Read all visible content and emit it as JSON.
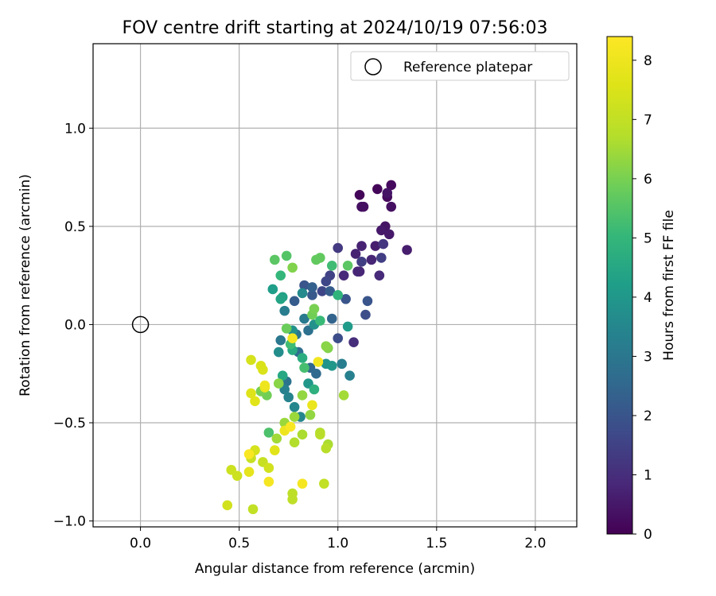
{
  "chart_data": {
    "type": "scatter",
    "title": "FOV centre drift starting at 2024/10/19 07:56:03",
    "xlabel": "Angular distance from reference (arcmin)",
    "ylabel": "Rotation from reference (arcmin)",
    "xlim": [
      -0.24,
      2.21
    ],
    "ylim": [
      -1.03,
      1.43
    ],
    "xticks": [
      0.0,
      0.5,
      1.0,
      1.5,
      2.0
    ],
    "xtick_labels": [
      "0.0",
      "0.5",
      "1.0",
      "1.5",
      "2.0"
    ],
    "yticks": [
      -1.0,
      -0.5,
      0.0,
      0.5,
      1.0
    ],
    "ytick_labels": [
      "−1.0",
      "−0.5",
      "0.0",
      "0.5",
      "1.0"
    ],
    "grid": true,
    "legend": {
      "position": "top-right",
      "entries": [
        "Reference platepar"
      ]
    },
    "reference_point": {
      "x": 0.0,
      "y": 0.0,
      "label": "Reference platepar"
    },
    "colorbar": {
      "label": "Hours from first FF file",
      "colormap": "viridis",
      "range": [
        0,
        8.4
      ],
      "ticks": [
        0,
        1,
        2,
        3,
        4,
        5,
        6,
        7,
        8
      ],
      "tick_labels": [
        "0",
        "1",
        "2",
        "3",
        "4",
        "5",
        "6",
        "7",
        "8"
      ]
    },
    "points": [
      {
        "x": 1.11,
        "y": 0.66,
        "h": 0.1
      },
      {
        "x": 1.2,
        "y": 0.69,
        "h": 0.1
      },
      {
        "x": 1.27,
        "y": 0.71,
        "h": 0.2
      },
      {
        "x": 1.25,
        "y": 0.65,
        "h": 0.2
      },
      {
        "x": 1.27,
        "y": 0.6,
        "h": 0.3
      },
      {
        "x": 1.12,
        "y": 0.6,
        "h": 0.3
      },
      {
        "x": 1.13,
        "y": 0.6,
        "h": 0.3
      },
      {
        "x": 1.25,
        "y": 0.67,
        "h": 0.4
      },
      {
        "x": 1.24,
        "y": 0.5,
        "h": 0.4
      },
      {
        "x": 1.22,
        "y": 0.48,
        "h": 0.5
      },
      {
        "x": 1.26,
        "y": 0.46,
        "h": 0.5
      },
      {
        "x": 1.35,
        "y": 0.38,
        "h": 0.6
      },
      {
        "x": 1.19,
        "y": 0.4,
        "h": 0.6
      },
      {
        "x": 1.12,
        "y": 0.4,
        "h": 0.7
      },
      {
        "x": 1.09,
        "y": 0.36,
        "h": 0.7
      },
      {
        "x": 1.17,
        "y": 0.33,
        "h": 0.8
      },
      {
        "x": 1.1,
        "y": 0.27,
        "h": 0.8
      },
      {
        "x": 1.11,
        "y": 0.27,
        "h": 0.8
      },
      {
        "x": 1.03,
        "y": 0.25,
        "h": 0.9
      },
      {
        "x": 1.21,
        "y": 0.25,
        "h": 0.9
      },
      {
        "x": 1.08,
        "y": -0.09,
        "h": 1.0
      },
      {
        "x": 1.23,
        "y": 0.41,
        "h": 1.2
      },
      {
        "x": 1.0,
        "y": 0.39,
        "h": 1.3
      },
      {
        "x": 1.22,
        "y": 0.34,
        "h": 1.4
      },
      {
        "x": 1.12,
        "y": 0.32,
        "h": 1.4
      },
      {
        "x": 0.96,
        "y": 0.25,
        "h": 1.5
      },
      {
        "x": 0.94,
        "y": 0.22,
        "h": 1.6
      },
      {
        "x": 0.92,
        "y": 0.17,
        "h": 1.6
      },
      {
        "x": 1.0,
        "y": -0.07,
        "h": 1.8
      },
      {
        "x": 1.14,
        "y": 0.05,
        "h": 1.8
      },
      {
        "x": 1.15,
        "y": 0.12,
        "h": 2.0
      },
      {
        "x": 1.04,
        "y": 0.13,
        "h": 2.0
      },
      {
        "x": 0.83,
        "y": 0.2,
        "h": 2.0
      },
      {
        "x": 0.87,
        "y": 0.15,
        "h": 2.1
      },
      {
        "x": 0.78,
        "y": 0.12,
        "h": 2.2
      },
      {
        "x": 0.96,
        "y": 0.17,
        "h": 2.2
      },
      {
        "x": 0.87,
        "y": 0.19,
        "h": 2.3
      },
      {
        "x": 0.97,
        "y": 0.03,
        "h": 2.4
      },
      {
        "x": 0.86,
        "y": -0.22,
        "h": 2.5
      },
      {
        "x": 0.89,
        "y": -0.25,
        "h": 2.6
      },
      {
        "x": 0.8,
        "y": -0.14,
        "h": 2.7
      },
      {
        "x": 0.85,
        "y": -0.03,
        "h": 2.8
      },
      {
        "x": 0.74,
        "y": -0.29,
        "h": 2.9
      },
      {
        "x": 0.71,
        "y": -0.08,
        "h": 3.0
      },
      {
        "x": 0.79,
        "y": -0.05,
        "h": 3.0
      },
      {
        "x": 0.83,
        "y": 0.03,
        "h": 3.1
      },
      {
        "x": 0.73,
        "y": 0.07,
        "h": 3.2
      },
      {
        "x": 1.02,
        "y": -0.2,
        "h": 3.2
      },
      {
        "x": 1.06,
        "y": -0.26,
        "h": 3.3
      },
      {
        "x": 0.73,
        "y": -0.33,
        "h": 3.3
      },
      {
        "x": 0.75,
        "y": -0.37,
        "h": 3.4
      },
      {
        "x": 0.78,
        "y": -0.42,
        "h": 3.5
      },
      {
        "x": 0.81,
        "y": -0.47,
        "h": 3.5
      },
      {
        "x": 0.82,
        "y": 0.16,
        "h": 3.6
      },
      {
        "x": 0.7,
        "y": -0.14,
        "h": 3.7
      },
      {
        "x": 0.77,
        "y": -0.03,
        "h": 3.8
      },
      {
        "x": 0.88,
        "y": 0.0,
        "h": 3.8
      },
      {
        "x": 0.94,
        "y": -0.2,
        "h": 3.9
      },
      {
        "x": 0.85,
        "y": -0.3,
        "h": 4.0
      },
      {
        "x": 0.97,
        "y": -0.21,
        "h": 4.0
      },
      {
        "x": 1.05,
        "y": -0.01,
        "h": 4.1
      },
      {
        "x": 0.67,
        "y": 0.18,
        "h": 4.2
      },
      {
        "x": 0.72,
        "y": 0.14,
        "h": 4.3
      },
      {
        "x": 0.71,
        "y": 0.13,
        "h": 4.4
      },
      {
        "x": 0.72,
        "y": -0.26,
        "h": 4.5
      },
      {
        "x": 0.77,
        "y": -0.13,
        "h": 4.6
      },
      {
        "x": 0.82,
        "y": -0.17,
        "h": 4.7
      },
      {
        "x": 0.88,
        "y": -0.33,
        "h": 4.8
      },
      {
        "x": 1.0,
        "y": 0.15,
        "h": 4.9
      },
      {
        "x": 0.71,
        "y": 0.25,
        "h": 5.0
      },
      {
        "x": 0.91,
        "y": 0.02,
        "h": 5.1
      },
      {
        "x": 0.97,
        "y": 0.3,
        "h": 5.2
      },
      {
        "x": 0.76,
        "y": -0.1,
        "h": 5.2
      },
      {
        "x": 0.83,
        "y": -0.22,
        "h": 5.3
      },
      {
        "x": 0.65,
        "y": -0.55,
        "h": 5.4
      },
      {
        "x": 0.74,
        "y": 0.35,
        "h": 5.5
      },
      {
        "x": 1.05,
        "y": 0.3,
        "h": 5.6
      },
      {
        "x": 0.68,
        "y": 0.33,
        "h": 5.6
      },
      {
        "x": 0.91,
        "y": 0.34,
        "h": 5.7
      },
      {
        "x": 0.89,
        "y": 0.33,
        "h": 5.7
      },
      {
        "x": 0.74,
        "y": -0.02,
        "h": 5.8
      },
      {
        "x": 0.87,
        "y": 0.05,
        "h": 5.9
      },
      {
        "x": 0.64,
        "y": -0.36,
        "h": 5.9
      },
      {
        "x": 0.61,
        "y": -0.34,
        "h": 6.0
      },
      {
        "x": 0.88,
        "y": 0.08,
        "h": 6.0
      },
      {
        "x": 0.77,
        "y": 0.29,
        "h": 6.1
      },
      {
        "x": 0.95,
        "y": -0.12,
        "h": 6.1
      },
      {
        "x": 0.94,
        "y": -0.11,
        "h": 6.2
      },
      {
        "x": 0.7,
        "y": -0.3,
        "h": 6.2
      },
      {
        "x": 0.82,
        "y": -0.36,
        "h": 6.3
      },
      {
        "x": 0.86,
        "y": -0.46,
        "h": 6.3
      },
      {
        "x": 0.78,
        "y": -0.47,
        "h": 6.4
      },
      {
        "x": 0.73,
        "y": -0.5,
        "h": 6.4
      },
      {
        "x": 1.03,
        "y": -0.36,
        "h": 6.5
      },
      {
        "x": 0.69,
        "y": -0.58,
        "h": 6.5
      },
      {
        "x": 0.82,
        "y": -0.56,
        "h": 6.6
      },
      {
        "x": 0.95,
        "y": -0.61,
        "h": 6.6
      },
      {
        "x": 0.78,
        "y": -0.6,
        "h": 6.7
      },
      {
        "x": 0.91,
        "y": -0.55,
        "h": 6.7
      },
      {
        "x": 0.91,
        "y": -0.56,
        "h": 6.8
      },
      {
        "x": 0.94,
        "y": -0.63,
        "h": 6.8
      },
      {
        "x": 0.77,
        "y": -0.86,
        "h": 6.9
      },
      {
        "x": 0.77,
        "y": -0.89,
        "h": 6.9
      },
      {
        "x": 0.93,
        "y": -0.81,
        "h": 7.0
      },
      {
        "x": 0.57,
        "y": -0.94,
        "h": 7.0
      },
      {
        "x": 0.62,
        "y": -0.7,
        "h": 7.1
      },
      {
        "x": 0.56,
        "y": -0.68,
        "h": 7.1
      },
      {
        "x": 0.46,
        "y": -0.74,
        "h": 7.2
      },
      {
        "x": 0.49,
        "y": -0.77,
        "h": 7.2
      },
      {
        "x": 0.44,
        "y": -0.92,
        "h": 7.3
      },
      {
        "x": 0.65,
        "y": -0.73,
        "h": 7.3
      },
      {
        "x": 0.58,
        "y": -0.64,
        "h": 7.4
      },
      {
        "x": 0.56,
        "y": -0.18,
        "h": 7.4
      },
      {
        "x": 0.61,
        "y": -0.21,
        "h": 7.5
      },
      {
        "x": 0.62,
        "y": -0.23,
        "h": 7.5
      },
      {
        "x": 0.56,
        "y": -0.35,
        "h": 7.6
      },
      {
        "x": 0.58,
        "y": -0.39,
        "h": 7.7
      },
      {
        "x": 0.68,
        "y": -0.64,
        "h": 7.7
      },
      {
        "x": 0.55,
        "y": -0.75,
        "h": 7.8
      },
      {
        "x": 0.63,
        "y": -0.32,
        "h": 7.9
      },
      {
        "x": 0.87,
        "y": -0.41,
        "h": 7.9
      },
      {
        "x": 0.63,
        "y": -0.31,
        "h": 8.0
      },
      {
        "x": 0.73,
        "y": -0.54,
        "h": 8.0
      },
      {
        "x": 0.9,
        "y": -0.19,
        "h": 8.1
      },
      {
        "x": 0.77,
        "y": -0.07,
        "h": 8.1
      },
      {
        "x": 0.65,
        "y": -0.8,
        "h": 8.2
      },
      {
        "x": 0.82,
        "y": -0.81,
        "h": 8.2
      },
      {
        "x": 0.55,
        "y": -0.66,
        "h": 8.3
      },
      {
        "x": 0.76,
        "y": -0.52,
        "h": 8.3
      }
    ]
  }
}
